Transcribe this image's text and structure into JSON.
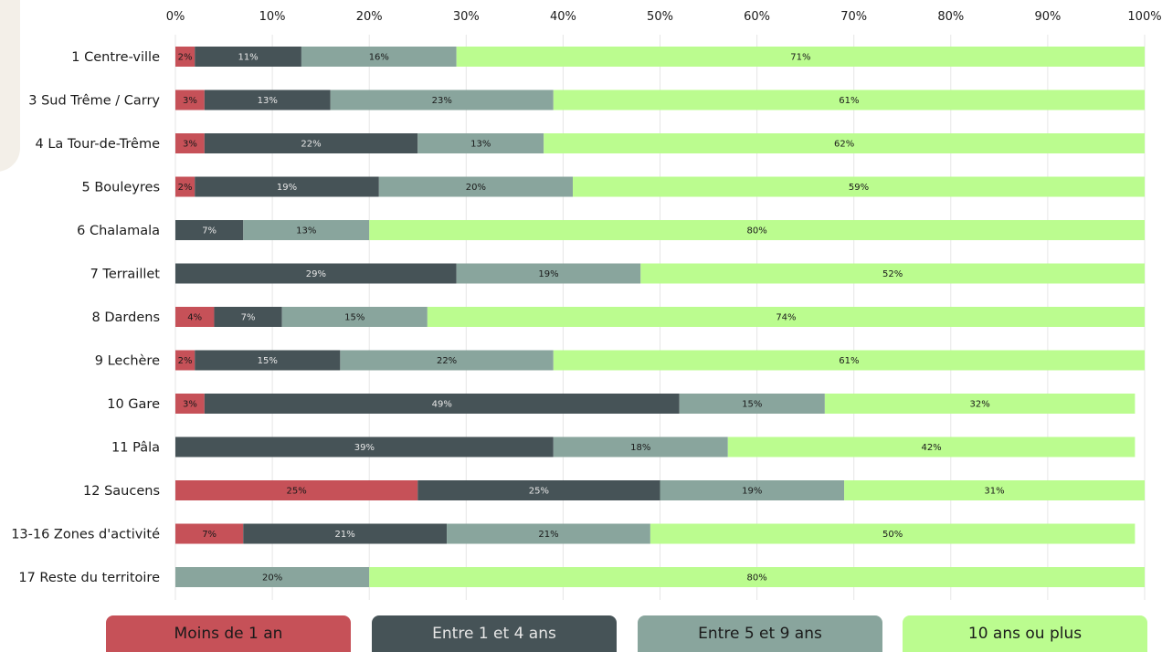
{
  "chart_data": {
    "type": "bar",
    "orientation": "horizontal",
    "stacked": true,
    "categories": [
      "1 Centre-ville",
      "3 Sud Trême / Carry",
      "4 La Tour-de-Trême",
      "5 Bouleyres",
      "6 Chalamala",
      "7 Terraillet",
      "8 Dardens",
      "9 Lechère",
      "10 Gare",
      "11 Pâla",
      "12 Saucens",
      "13-16 Zones d'activité",
      "17 Reste du territoire"
    ],
    "series": [
      {
        "name": "Moins de 1 an",
        "color": "#c65158",
        "label_color": "#1a1a1a",
        "values": [
          2,
          3,
          3,
          2,
          0,
          0,
          4,
          2,
          3,
          0,
          25,
          7,
          0
        ]
      },
      {
        "name": "Entre 1 et 4 ans",
        "color": "#465357",
        "label_color": "#e6e6e6",
        "values": [
          11,
          13,
          22,
          19,
          7,
          29,
          7,
          15,
          49,
          39,
          25,
          21,
          0
        ]
      },
      {
        "name": "Entre 5 et 9 ans",
        "color": "#89a59d",
        "label_color": "#1a1a1a",
        "values": [
          16,
          23,
          13,
          20,
          13,
          19,
          15,
          22,
          15,
          18,
          19,
          21,
          20
        ]
      },
      {
        "name": "10 ans ou plus",
        "color": "#bbfc8f",
        "label_color": "#1a1a1a",
        "values": [
          71,
          61,
          62,
          59,
          80,
          52,
          74,
          61,
          32,
          42,
          31,
          50,
          80
        ]
      }
    ],
    "value_axis": {
      "min": 0,
      "max": 100,
      "ticks": [
        "0%",
        "10%",
        "20%",
        "30%",
        "40%",
        "50%",
        "60%",
        "70%",
        "80%",
        "90%",
        "100%"
      ],
      "position": "top"
    },
    "grid": true,
    "legend_position": "bottom",
    "title": "",
    "xlabel": "",
    "ylabel": ""
  }
}
